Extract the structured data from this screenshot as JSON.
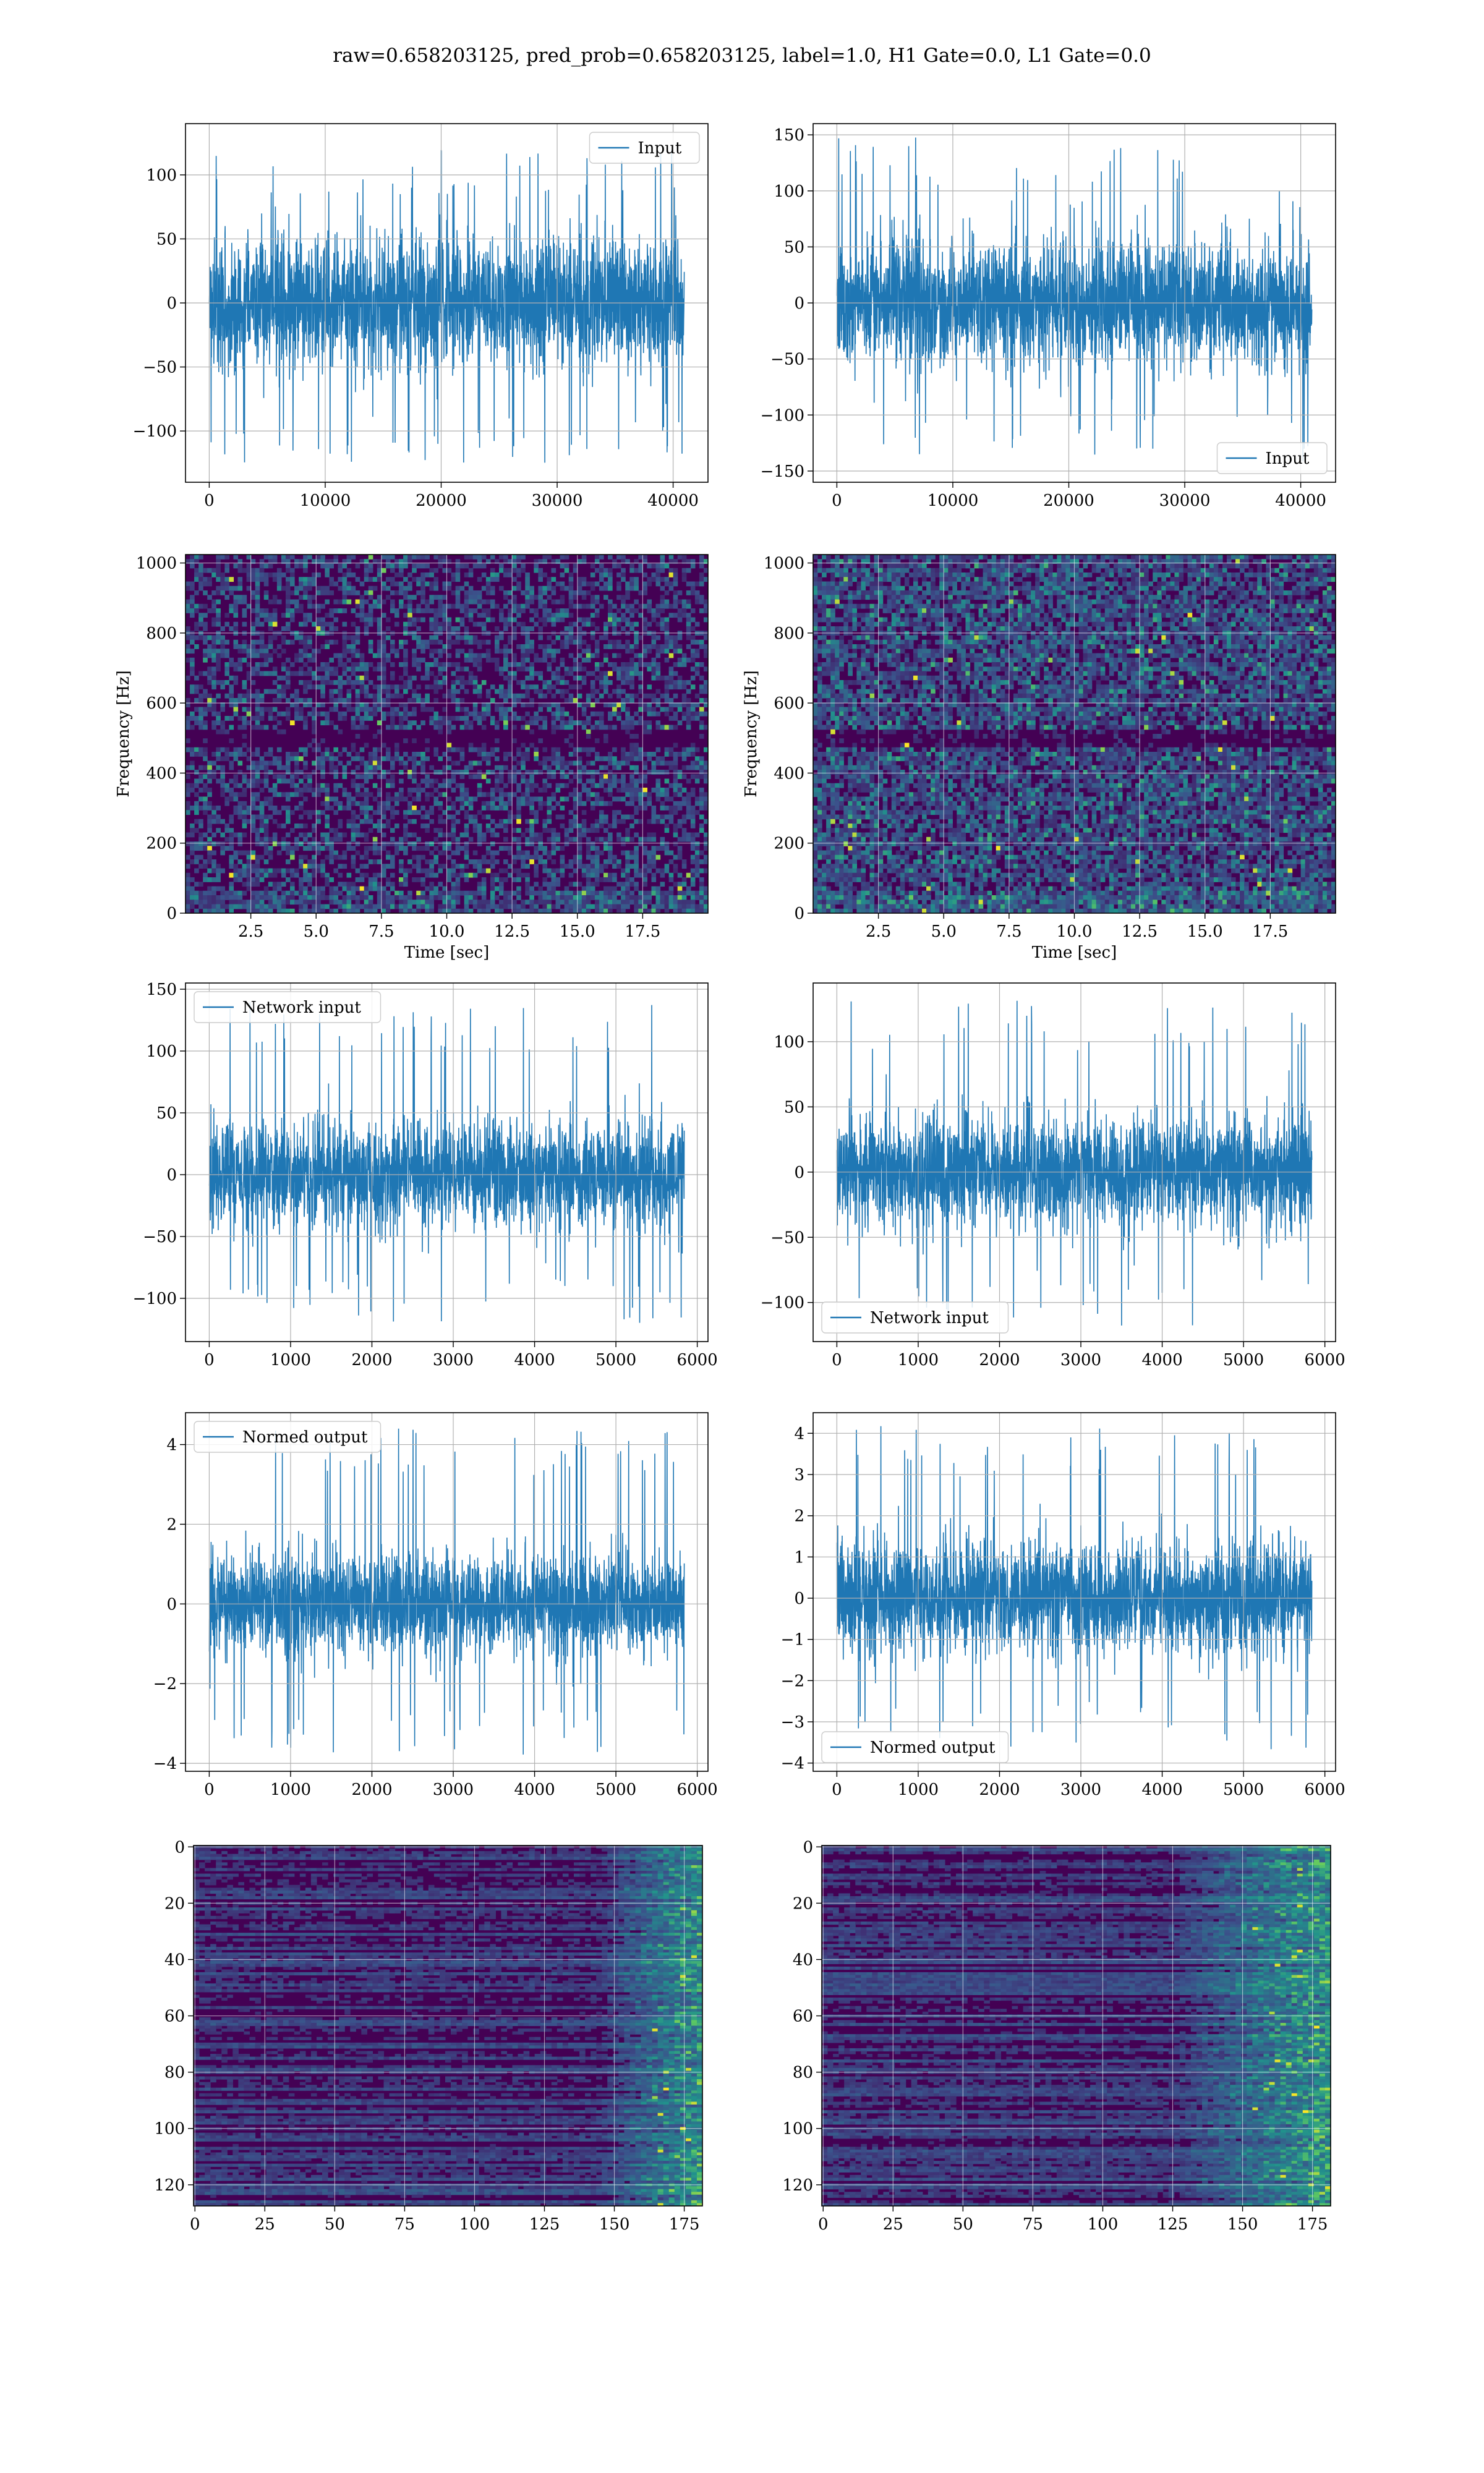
{
  "suptitle": "raw=0.658203125, pred_prob=0.658203125, label=1.0, H1 Gate=0.0, L1 Gate=0.0",
  "colors": {
    "line": "#1f77b4",
    "grid": "#b0b0b0",
    "viridis_dark": "#440154",
    "viridis_mid": "#21918c",
    "viridis_bright": "#fde725"
  },
  "chart_data": [
    {
      "id": "input-h1",
      "type": "line",
      "title": "",
      "series": [
        {
          "name": "Input",
          "x_range": [
            0,
            40960
          ],
          "y_band": [
            -60,
            60
          ],
          "y_spike_range": [
            -125,
            120
          ]
        }
      ],
      "xlabel": "",
      "ylabel": "",
      "xlim": [
        -2048,
        43008
      ],
      "ylim": [
        -140,
        140
      ],
      "xticks": [
        0,
        10000,
        20000,
        30000,
        40000
      ],
      "yticks": [
        -100,
        -50,
        0,
        50,
        100
      ],
      "legend": "top-right",
      "grid": true
    },
    {
      "id": "input-l1",
      "type": "line",
      "title": "",
      "series": [
        {
          "name": "Input",
          "x_range": [
            0,
            40960
          ],
          "y_band": [
            -65,
            65
          ],
          "y_spike_range": [
            -142,
            150
          ]
        }
      ],
      "xlabel": "",
      "ylabel": "",
      "xlim": [
        -2048,
        43008
      ],
      "ylim": [
        -160,
        160
      ],
      "xticks": [
        0,
        10000,
        20000,
        30000,
        40000
      ],
      "yticks": [
        -150,
        -100,
        -50,
        0,
        50,
        100,
        150
      ],
      "legend": "bottom-right",
      "grid": true
    },
    {
      "id": "spectrogram-h1",
      "type": "heatmap",
      "title": "",
      "xlabel": "Time [sec]",
      "ylabel": "Frequency [Hz]",
      "xlim": [
        0,
        20
      ],
      "ylim": [
        0,
        1024
      ],
      "xticks": [
        2.5,
        5.0,
        7.5,
        10.0,
        12.5,
        15.0,
        17.5
      ],
      "yticks": [
        0,
        200,
        400,
        600,
        800,
        1000
      ],
      "intensity": "low",
      "grid": true
    },
    {
      "id": "spectrogram-l1",
      "type": "heatmap",
      "title": "",
      "xlabel": "Time [sec]",
      "ylabel": "Frequency [Hz]",
      "xlim": [
        0,
        20
      ],
      "ylim": [
        0,
        1024
      ],
      "xticks": [
        2.5,
        5.0,
        7.5,
        10.0,
        12.5,
        15.0,
        17.5
      ],
      "yticks": [
        0,
        200,
        400,
        600,
        800,
        1000
      ],
      "intensity": "medium",
      "grid": true
    },
    {
      "id": "network-input-h1",
      "type": "line",
      "title": "",
      "series": [
        {
          "name": "Network input",
          "x_range": [
            0,
            5840
          ],
          "y_band": [
            -50,
            50
          ],
          "y_spike_range": [
            -120,
            140
          ]
        }
      ],
      "xlabel": "",
      "ylabel": "",
      "xlim": [
        -292,
        6132
      ],
      "ylim": [
        -135,
        155
      ],
      "xticks": [
        0,
        1000,
        2000,
        3000,
        4000,
        5000,
        6000
      ],
      "yticks": [
        -100,
        -50,
        0,
        50,
        100,
        150
      ],
      "legend": "top-left",
      "grid": true
    },
    {
      "id": "network-input-l1",
      "type": "line",
      "title": "",
      "series": [
        {
          "name": "Network input",
          "x_range": [
            0,
            5840
          ],
          "y_band": [
            -50,
            50
          ],
          "y_spike_range": [
            -118,
            132
          ]
        }
      ],
      "xlabel": "",
      "ylabel": "",
      "xlim": [
        -292,
        6132
      ],
      "ylim": [
        -130,
        145
      ],
      "xticks": [
        0,
        1000,
        2000,
        3000,
        4000,
        5000,
        6000
      ],
      "yticks": [
        -100,
        -50,
        0,
        50,
        100
      ],
      "legend": "bottom-left",
      "grid": true
    },
    {
      "id": "normed-output-h1",
      "type": "line",
      "title": "",
      "series": [
        {
          "name": "Normed output",
          "x_range": [
            0,
            5840
          ],
          "y_band": [
            -1.5,
            1.5
          ],
          "y_spike_range": [
            -3.8,
            4.4
          ]
        }
      ],
      "xlabel": "",
      "ylabel": "",
      "xlim": [
        -292,
        6132
      ],
      "ylim": [
        -4.2,
        4.8
      ],
      "xticks": [
        0,
        1000,
        2000,
        3000,
        4000,
        5000,
        6000
      ],
      "yticks": [
        -4,
        -2,
        0,
        2,
        4
      ],
      "legend": "top-left",
      "grid": true
    },
    {
      "id": "normed-output-l1",
      "type": "line",
      "title": "",
      "series": [
        {
          "name": "Normed output",
          "x_range": [
            0,
            5840
          ],
          "y_band": [
            -1.6,
            1.6
          ],
          "y_spike_range": [
            -3.7,
            4.2
          ]
        }
      ],
      "xlabel": "",
      "ylabel": "",
      "xlim": [
        -292,
        6132
      ],
      "ylim": [
        -4.2,
        4.5
      ],
      "xticks": [
        0,
        1000,
        2000,
        3000,
        4000,
        5000,
        6000
      ],
      "yticks": [
        -4,
        -3,
        -2,
        -1,
        0,
        1,
        2,
        3,
        4
      ],
      "legend": "bottom-left",
      "grid": true
    },
    {
      "id": "feature-map-h1",
      "type": "heatmap",
      "title": "",
      "xlabel": "",
      "ylabel": "",
      "xlim": [
        -0.5,
        181.5
      ],
      "ylim": [
        127.5,
        -0.5
      ],
      "xticks": [
        0,
        25,
        50,
        75,
        100,
        125,
        150,
        175
      ],
      "yticks": [
        0,
        20,
        40,
        60,
        80,
        100,
        120
      ],
      "bright_columns": [
        145,
        181
      ],
      "grid": true
    },
    {
      "id": "feature-map-l1",
      "type": "heatmap",
      "title": "",
      "xlabel": "",
      "ylabel": "",
      "xlim": [
        -0.5,
        181.5
      ],
      "ylim": [
        127.5,
        -0.5
      ],
      "xticks": [
        0,
        25,
        50,
        75,
        100,
        125,
        150,
        175
      ],
      "yticks": [
        0,
        20,
        40,
        60,
        80,
        100,
        120
      ],
      "bright_columns": [
        125,
        181
      ],
      "grid": true
    }
  ]
}
